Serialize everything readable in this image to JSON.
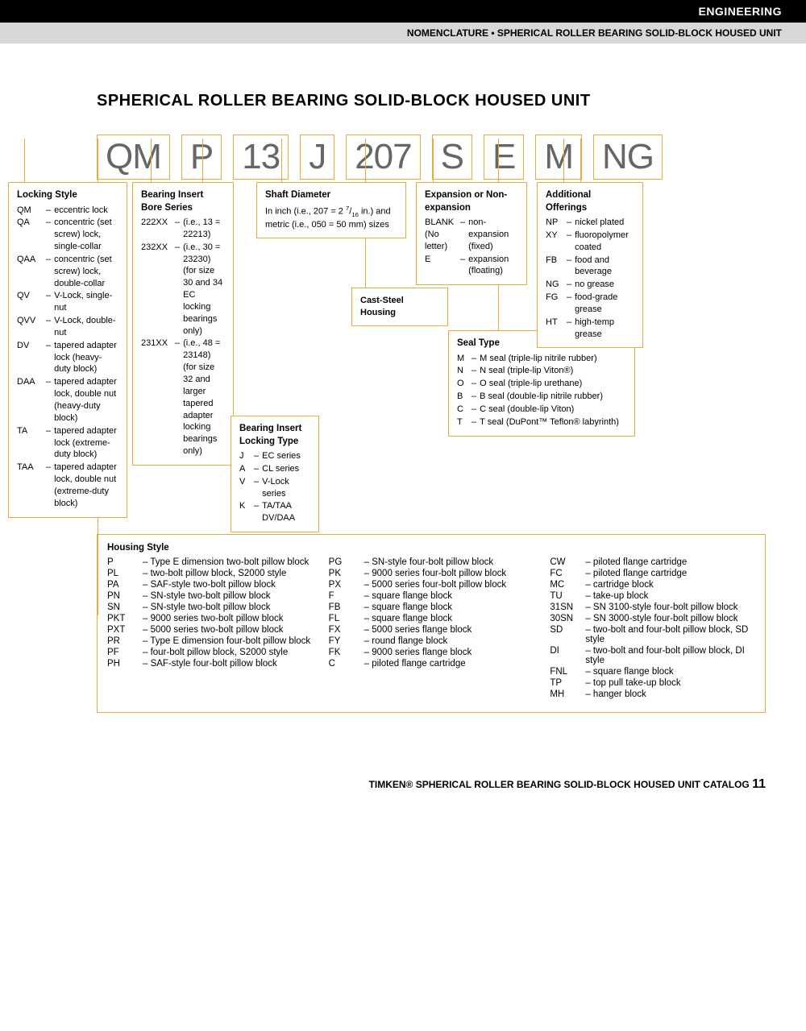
{
  "header": {
    "category": "ENGINEERING",
    "subtitle": "NOMENCLATURE • SPHERICAL ROLLER BEARING SOLID-BLOCK HOUSED UNIT"
  },
  "title": "SPHERICAL ROLLER BEARING SOLID-BLOCK HOUSED UNIT",
  "code_segments": [
    "QM",
    "P",
    "13",
    "J",
    "207",
    "S",
    "E",
    "M",
    "NG"
  ],
  "locking_style": {
    "title": "Locking Style",
    "items": [
      {
        "c": "QM",
        "t": "eccentric lock"
      },
      {
        "c": "QA",
        "t": "concentric (set screw) lock, single-collar"
      },
      {
        "c": "QAA",
        "t": "concentric (set screw) lock, double-collar"
      },
      {
        "c": "QV",
        "t": "V-Lock, single-nut"
      },
      {
        "c": "QVV",
        "t": "V-Lock, double-nut"
      },
      {
        "c": "DV",
        "t": "tapered adapter lock (heavy-duty block)"
      },
      {
        "c": "DAA",
        "t": "tapered adapter lock, double nut (heavy-duty block)"
      },
      {
        "c": "TA",
        "t": "tapered adapter lock (extreme-duty block)"
      },
      {
        "c": "TAA",
        "t": "tapered adapter lock, double nut (extreme-duty block)"
      }
    ]
  },
  "bore_series": {
    "title": "Bearing Insert Bore Series",
    "items": [
      {
        "c": "222XX",
        "t": "(i.e., 13 = 22213)"
      },
      {
        "c": "232XX",
        "t": "(i.e., 30 = 23230) (for size 30 and 34 EC locking bearings only)"
      },
      {
        "c": "231XX",
        "t": "(i.e., 48 = 23148) (for size 32 and larger tapered adapter locking bearings only)"
      }
    ]
  },
  "locking_type": {
    "title": "Bearing Insert Locking Type",
    "items": [
      {
        "c": "J",
        "t": "EC series"
      },
      {
        "c": "A",
        "t": "CL series"
      },
      {
        "c": "V",
        "t": "V-Lock series"
      },
      {
        "c": "K",
        "t": "TA/TAA DV/DAA"
      }
    ]
  },
  "shaft_dia": {
    "title": "Shaft Diameter",
    "text": "In inch (i.e., 207 = 2 7/16 in.) and metric (i.e., 050 = 50 mm) sizes"
  },
  "cast_steel": "Cast-Steel Housing",
  "expansion": {
    "title": "Expansion or Non-expansion",
    "items": [
      {
        "c": "BLANK (No letter)",
        "t": "non-expansion (fixed)"
      },
      {
        "c": "E",
        "t": "expansion (floating)"
      }
    ]
  },
  "seal_type": {
    "title": "Seal Type",
    "items": [
      {
        "c": "M",
        "t": "M seal (triple-lip nitrile rubber)"
      },
      {
        "c": "N",
        "t": "N seal (triple-lip Viton®)"
      },
      {
        "c": "O",
        "t": "O seal (triple-lip urethane)"
      },
      {
        "c": "B",
        "t": "B seal (double-lip nitrile rubber)"
      },
      {
        "c": "C",
        "t": "C seal (double-lip Viton)"
      },
      {
        "c": "T",
        "t": "T seal (DuPont™ Teflon® labyrinth)"
      }
    ]
  },
  "additional": {
    "title": "Additional Offerings",
    "items": [
      {
        "c": "NP",
        "t": "nickel plated"
      },
      {
        "c": "XY",
        "t": "fluoropolymer coated"
      },
      {
        "c": "FB",
        "t": "food and beverage"
      },
      {
        "c": "NG",
        "t": "no grease"
      },
      {
        "c": "FG",
        "t": "food-grade grease"
      },
      {
        "c": "HT",
        "t": "high-temp grease"
      }
    ]
  },
  "housing": {
    "title": "Housing Style",
    "col1": [
      {
        "c": "P",
        "t": "Type E dimension two-bolt pillow block"
      },
      {
        "c": "PL",
        "t": "two-bolt pillow block, S2000 style"
      },
      {
        "c": "PA",
        "t": "SAF-style two-bolt pillow block"
      },
      {
        "c": "PN",
        "t": "SN-style two-bolt pillow block"
      },
      {
        "c": "SN",
        "t": "SN-style two-bolt pillow block"
      },
      {
        "c": "PKT",
        "t": "9000 series two-bolt pillow block"
      },
      {
        "c": "PXT",
        "t": "5000 series two-bolt pillow block"
      },
      {
        "c": "PR",
        "t": "Type E dimension four-bolt pillow block"
      },
      {
        "c": "PF",
        "t": "four-bolt pillow block, S2000 style"
      },
      {
        "c": "PH",
        "t": "SAF-style four-bolt pillow block"
      }
    ],
    "col2": [
      {
        "c": "PG",
        "t": "SN-style four-bolt pillow block"
      },
      {
        "c": "PK",
        "t": "9000 series four-bolt pillow block"
      },
      {
        "c": "PX",
        "t": "5000 series four-bolt pillow block"
      },
      {
        "c": "F",
        "t": "square flange block"
      },
      {
        "c": "FB",
        "t": "square flange block"
      },
      {
        "c": "FL",
        "t": "square flange block"
      },
      {
        "c": "FX",
        "t": "5000 series flange block"
      },
      {
        "c": "FY",
        "t": "round flange block"
      },
      {
        "c": "FK",
        "t": "9000 series flange block"
      },
      {
        "c": "C",
        "t": "piloted flange cartridge"
      }
    ],
    "col3": [
      {
        "c": "CW",
        "t": "piloted flange cartridge"
      },
      {
        "c": "FC",
        "t": "piloted flange cartridge"
      },
      {
        "c": "MC",
        "t": "cartridge block"
      },
      {
        "c": "TU",
        "t": "take-up block"
      },
      {
        "c": "31SN",
        "t": "SN 3100-style four-bolt pillow block"
      },
      {
        "c": "30SN",
        "t": "SN 3000-style four-bolt pillow block"
      },
      {
        "c": "SD",
        "t": "two-bolt and four-bolt pillow block, SD style"
      },
      {
        "c": "DI",
        "t": "two-bolt and four-bolt pillow block, DI style"
      },
      {
        "c": "FNL",
        "t": "square flange block"
      },
      {
        "c": "TP",
        "t": "top pull take-up block"
      },
      {
        "c": "MH",
        "t": "hanger block"
      }
    ]
  },
  "footer": {
    "text": "TIMKEN® SPHERICAL ROLLER BEARING SOLID-BLOCK HOUSED UNIT CATALOG",
    "page": "11"
  },
  "colors": {
    "accent": "#e8a940",
    "code_text": "#666666"
  }
}
